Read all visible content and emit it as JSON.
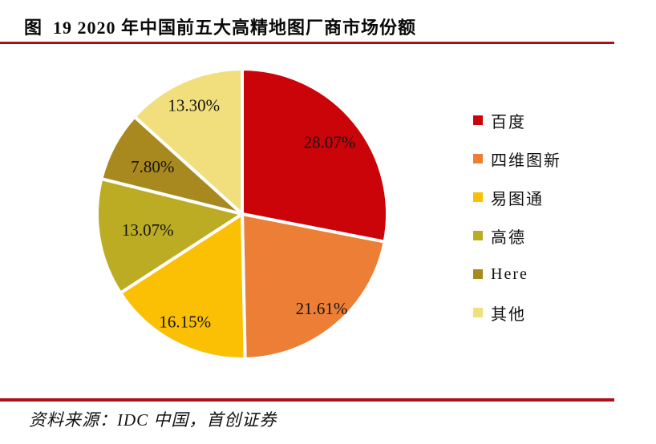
{
  "header": {
    "title": "图  19 2020 年中国前五大高精地图厂商市场份额"
  },
  "footer": {
    "source": "资料来源：IDC 中国，首创证券"
  },
  "accent_color": "#a91115",
  "chart_data": {
    "type": "pie",
    "title": "2020 年中国前五大高精地图厂商市场份额",
    "categories": [
      "百度",
      "四维图新",
      "易图通",
      "高德",
      "Here",
      "其他"
    ],
    "values": [
      28.07,
      21.61,
      16.15,
      13.07,
      7.8,
      13.3
    ],
    "labels": [
      "28.07%",
      "21.61%",
      "16.15%",
      "13.07%",
      "7.80%",
      "13.30%"
    ],
    "colors": [
      "#CA0409",
      "#EC7F35",
      "#FBBF04",
      "#BCAC23",
      "#A8891F",
      "#F1DE7C"
    ],
    "slice_border_color": "#FFFFFF",
    "start_angle_deg": 0,
    "direction": "clockwise",
    "legend_position": "right",
    "label_color": "#141414"
  }
}
